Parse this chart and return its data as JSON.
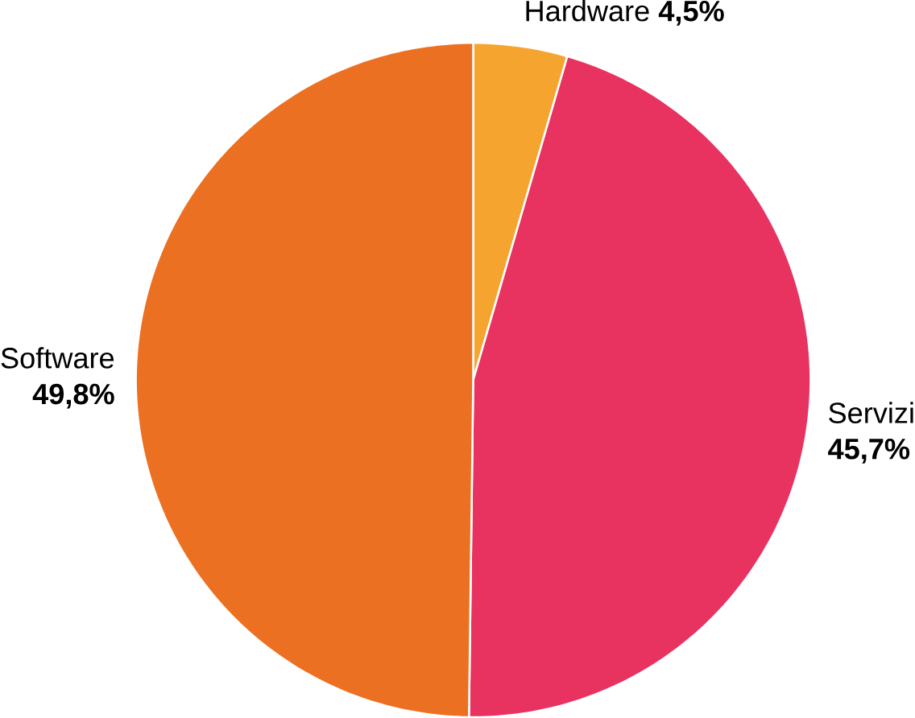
{
  "chart_data": {
    "type": "pie",
    "categories": [
      "Hardware",
      "Servizi",
      "Software"
    ],
    "values": [
      4.5,
      45.7,
      49.8
    ],
    "colors": [
      "#f5a52f",
      "#e83260",
      "#ec7021"
    ],
    "value_labels": [
      "4,5%",
      "45,7%",
      "49,8%"
    ]
  }
}
